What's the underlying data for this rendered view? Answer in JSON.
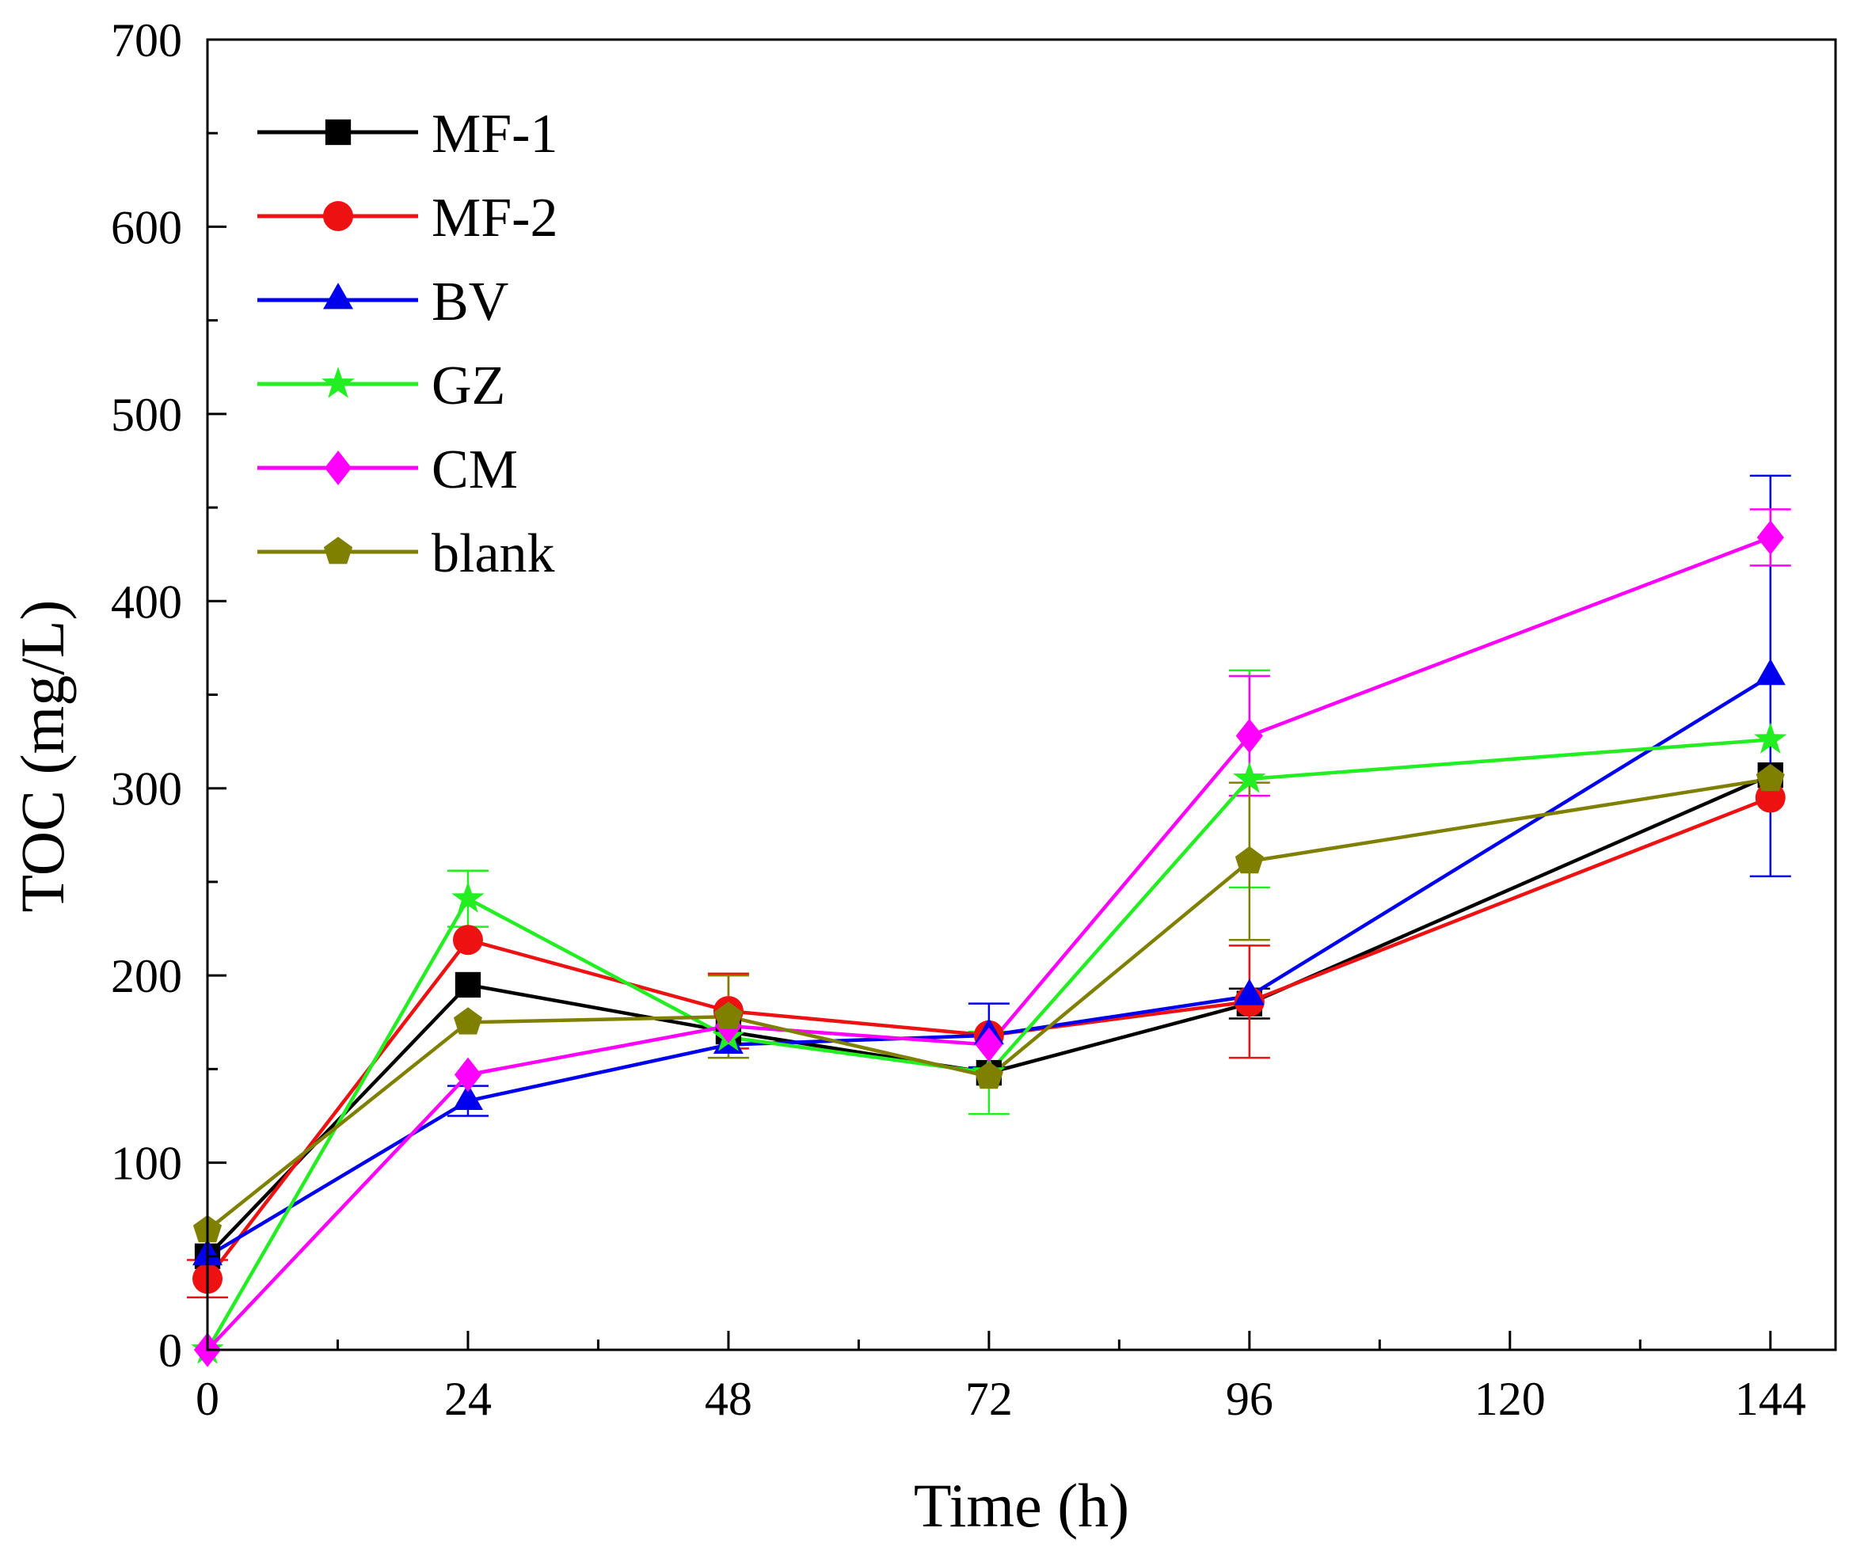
{
  "chart_data": {
    "type": "line",
    "title": "",
    "xlabel": "Time (h)",
    "ylabel": "TOC (mg/L)",
    "xlim": [
      0,
      150
    ],
    "ylim": [
      0,
      700
    ],
    "xticks": [
      0,
      24,
      48,
      72,
      96,
      120,
      144
    ],
    "xtick_labels": [
      "0",
      "24",
      "48",
      "72",
      "96",
      "120",
      "144"
    ],
    "yticks": [
      0,
      100,
      200,
      300,
      400,
      500,
      600,
      700
    ],
    "ytick_labels": [
      "0",
      "100",
      "200",
      "300",
      "400",
      "500",
      "600",
      "700"
    ],
    "x_minor_step": 12,
    "y_minor_step": 50,
    "grid": false,
    "legend_position": "top-left",
    "x": [
      0,
      24,
      48,
      72,
      96,
      144
    ],
    "series": [
      {
        "name": "MF-1",
        "color": "#000000",
        "marker": "square",
        "values": [
          50,
          195,
          170,
          148,
          185,
          307
        ],
        "errors": [
          0,
          0,
          0,
          0,
          8,
          0
        ]
      },
      {
        "name": "MF-2",
        "color": "#ee1111",
        "marker": "circle",
        "values": [
          38,
          219,
          181,
          168,
          186,
          295
        ],
        "errors": [
          10,
          0,
          20,
          0,
          30,
          0
        ]
      },
      {
        "name": "BV",
        "color": "#0000ee",
        "marker": "triangle",
        "values": [
          50,
          133,
          163,
          168,
          189,
          360
        ],
        "errors": [
          0,
          8,
          0,
          17,
          0,
          107
        ]
      },
      {
        "name": "GZ",
        "color": "#22ee22",
        "marker": "star",
        "values": [
          0,
          241,
          167,
          148,
          305,
          326
        ],
        "errors": [
          0,
          15,
          0,
          22,
          58,
          0
        ]
      },
      {
        "name": "CM",
        "color": "#ff00ff",
        "marker": "diamond",
        "values": [
          0,
          147,
          173,
          163,
          328,
          434
        ],
        "errors": [
          0,
          0,
          0,
          0,
          32,
          15
        ]
      },
      {
        "name": "blank",
        "color": "#808000",
        "marker": "pentagon",
        "values": [
          64,
          175,
          178,
          146,
          261,
          305
        ],
        "errors": [
          0,
          0,
          22,
          0,
          42,
          0
        ]
      }
    ]
  }
}
